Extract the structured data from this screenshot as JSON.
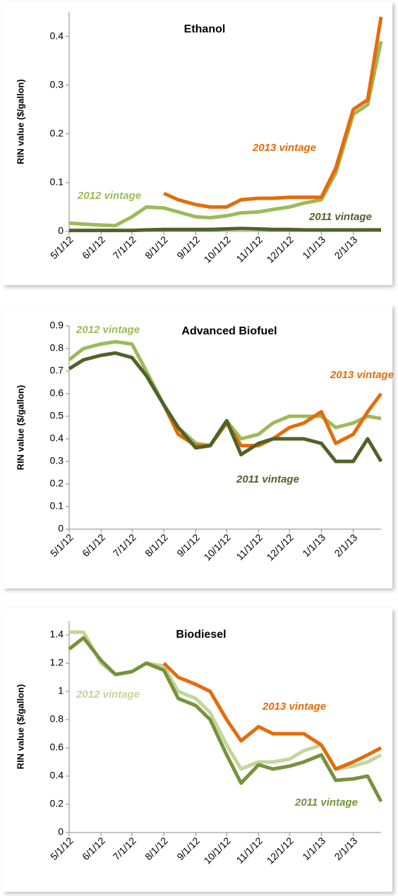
{
  "chart_data": [
    {
      "type": "line",
      "title": "Ethanol",
      "y_label": "RIN value ($/gallon)",
      "x": [
        "5/1/12",
        "5/15/12",
        "6/1/12",
        "6/15/12",
        "7/1/12",
        "7/15/12",
        "8/1/12",
        "8/15/12",
        "9/1/12",
        "9/15/12",
        "10/1/12",
        "10/15/12",
        "11/1/12",
        "11/15/12",
        "12/1/12",
        "12/15/12",
        "1/1/13",
        "1/15/13",
        "2/1/13",
        "2/15/13",
        "2/28/13"
      ],
      "xlim": [
        "5/1/12",
        "2/28/13"
      ],
      "xticks": [
        "5/1/12",
        "6/1/12",
        "7/1/12",
        "8/1/12",
        "9/1/12",
        "10/1/12",
        "11/1/12",
        "12/1/12",
        "1/1/13",
        "2/1/13"
      ],
      "ylim": [
        0,
        0.45
      ],
      "yticks": [
        0,
        0.1,
        0.2,
        0.3,
        0.4
      ],
      "series": [
        {
          "name": "2012 vintage",
          "color": "#9bbb59",
          "values": [
            0.017,
            0.015,
            0.013,
            0.012,
            0.03,
            0.05,
            0.048,
            0.04,
            0.03,
            0.028,
            0.032,
            0.038,
            0.04,
            0.045,
            0.05,
            0.058,
            0.065,
            0.12,
            0.24,
            0.26,
            0.39
          ]
        },
        {
          "name": "2013 vintage",
          "color": "#e46c0a",
          "values": [
            null,
            null,
            null,
            null,
            null,
            null,
            0.078,
            0.065,
            0.055,
            0.05,
            0.05,
            0.065,
            0.068,
            0.068,
            0.07,
            0.07,
            0.07,
            0.13,
            0.25,
            0.27,
            0.44
          ]
        },
        {
          "name": "2011 vintage",
          "color": "#4f6228",
          "values": [
            0.002,
            0.002,
            0.002,
            0.002,
            0.002,
            0.003,
            0.004,
            0.004,
            0.004,
            0.004,
            0.005,
            0.006,
            0.005,
            0.004,
            0.004,
            0.003,
            0.003,
            0.003,
            0.003,
            0.003,
            0.003
          ]
        }
      ]
    },
    {
      "type": "line",
      "title": "Advanced Biofuel",
      "y_label": "RIN value ($/gallon)",
      "x": [
        "5/1/12",
        "5/15/12",
        "6/1/12",
        "6/15/12",
        "7/1/12",
        "7/15/12",
        "8/1/12",
        "8/15/12",
        "9/1/12",
        "9/15/12",
        "10/1/12",
        "10/15/12",
        "11/1/12",
        "11/15/12",
        "12/1/12",
        "12/15/12",
        "1/1/13",
        "1/15/13",
        "2/1/13",
        "2/15/13",
        "2/28/13"
      ],
      "xlim": [
        "5/1/12",
        "2/28/13"
      ],
      "xticks": [
        "5/1/12",
        "6/1/12",
        "7/1/12",
        "8/1/12",
        "9/1/12",
        "10/1/12",
        "11/1/12",
        "12/1/12",
        "1/1/13",
        "2/1/13"
      ],
      "ylim": [
        0,
        0.9
      ],
      "yticks": [
        0,
        0.1,
        0.2,
        0.3,
        0.4,
        0.5,
        0.6,
        0.7,
        0.8,
        0.9
      ],
      "series": [
        {
          "name": "2012 vintage",
          "color": "#9bbb59",
          "values": [
            0.75,
            0.8,
            0.82,
            0.83,
            0.82,
            0.7,
            0.55,
            0.45,
            0.38,
            0.37,
            0.48,
            0.4,
            0.42,
            0.47,
            0.5,
            0.5,
            0.5,
            0.45,
            0.47,
            0.5,
            0.49
          ]
        },
        {
          "name": "2013 vintage",
          "color": "#e46c0a",
          "values": [
            null,
            null,
            null,
            null,
            null,
            null,
            0.55,
            0.42,
            0.37,
            0.37,
            0.47,
            0.37,
            0.37,
            0.4,
            0.45,
            0.47,
            0.52,
            0.38,
            0.42,
            0.52,
            0.6
          ]
        },
        {
          "name": "2011 vintage",
          "color": "#4f6228",
          "values": [
            0.71,
            0.75,
            0.77,
            0.78,
            0.76,
            0.68,
            0.55,
            0.45,
            0.36,
            0.37,
            0.48,
            0.33,
            0.38,
            0.4,
            0.4,
            0.4,
            0.38,
            0.3,
            0.3,
            0.4,
            0.3
          ]
        }
      ]
    },
    {
      "type": "line",
      "title": "Biodiesel",
      "y_label": "RIN value ($/gallon)",
      "x": [
        "5/1/12",
        "5/15/12",
        "6/1/12",
        "6/15/12",
        "7/1/12",
        "7/15/12",
        "8/1/12",
        "8/15/12",
        "9/1/12",
        "9/15/12",
        "10/1/12",
        "10/15/12",
        "11/1/12",
        "11/15/12",
        "12/1/12",
        "12/15/12",
        "1/1/13",
        "1/15/13",
        "2/1/13",
        "2/15/13",
        "2/28/13"
      ],
      "xlim": [
        "5/1/12",
        "2/28/13"
      ],
      "xticks": [
        "5/1/12",
        "6/1/12",
        "7/1/12",
        "8/1/12",
        "9/1/12",
        "10/1/12",
        "11/1/12",
        "12/1/12",
        "1/1/13",
        "2/1/13"
      ],
      "ylim": [
        0,
        1.5
      ],
      "yticks": [
        0,
        0.2,
        0.4,
        0.6,
        0.8,
        1,
        1.2,
        1.4
      ],
      "series": [
        {
          "name": "2012 vintage",
          "color": "#c3d69b",
          "values": [
            1.42,
            1.42,
            1.2,
            1.12,
            1.14,
            1.2,
            1.18,
            1.0,
            0.95,
            0.85,
            0.62,
            0.45,
            0.5,
            0.5,
            0.52,
            0.58,
            0.62,
            0.45,
            0.47,
            0.5,
            0.55
          ]
        },
        {
          "name": "2013 vintage",
          "color": "#e46c0a",
          "values": [
            null,
            null,
            null,
            null,
            null,
            null,
            1.2,
            1.1,
            1.05,
            1.0,
            0.8,
            0.65,
            0.75,
            0.7,
            0.7,
            0.7,
            0.62,
            0.45,
            0.5,
            0.55,
            0.6
          ]
        },
        {
          "name": "2011 vintage",
          "color": "#76923c",
          "values": [
            1.3,
            1.38,
            1.22,
            1.12,
            1.14,
            1.2,
            1.15,
            0.95,
            0.9,
            0.8,
            0.55,
            0.35,
            0.48,
            0.45,
            0.47,
            0.5,
            0.55,
            0.37,
            0.38,
            0.4,
            0.22
          ]
        }
      ]
    }
  ]
}
